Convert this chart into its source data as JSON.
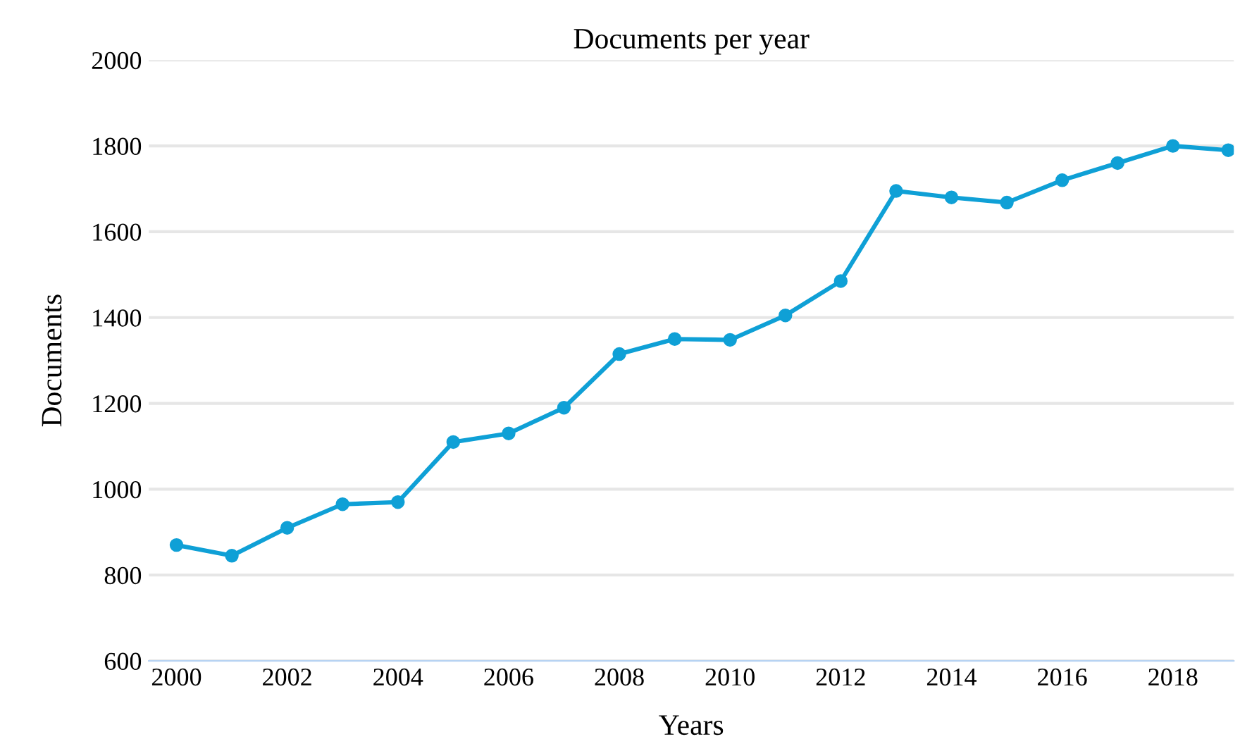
{
  "chart_data": {
    "type": "line",
    "title": "Documents per year",
    "xlabel": "Years",
    "ylabel": "Documents",
    "x": [
      2000,
      2001,
      2002,
      2003,
      2004,
      2005,
      2006,
      2007,
      2008,
      2009,
      2010,
      2011,
      2012,
      2013,
      2014,
      2015,
      2016,
      2017,
      2018,
      2019
    ],
    "series": [
      {
        "color": "#0fa0d6",
        "values": [
          870,
          845,
          910,
          965,
          970,
          1110,
          1130,
          1190,
          1315,
          1350,
          1348,
          1405,
          1485,
          1695,
          1680,
          1668,
          1720,
          1760,
          1800,
          1790
        ]
      }
    ],
    "xlim": [
      1999.5,
      2019.1
    ],
    "xticks": [
      2000,
      2002,
      2004,
      2006,
      2008,
      2010,
      2012,
      2014,
      2016,
      2018
    ],
    "ylim": [
      600,
      2000
    ],
    "yticks": [
      600,
      800,
      1000,
      1200,
      1400,
      1600,
      1800,
      2000
    ],
    "grid": "y",
    "marker": "circle",
    "line_style": "solid"
  }
}
